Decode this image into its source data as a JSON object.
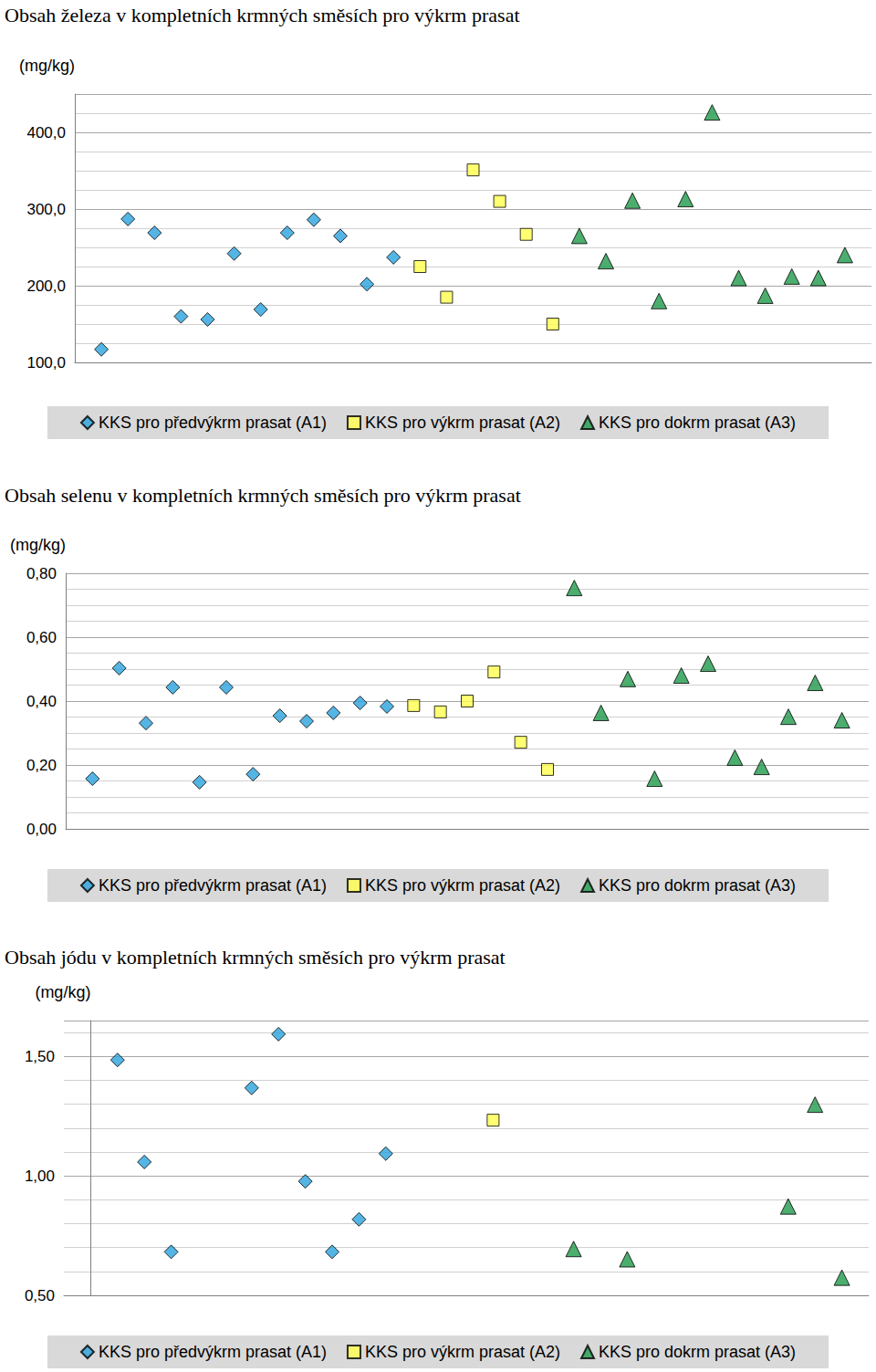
{
  "chart_data": [
    {
      "type": "scatter",
      "title": "Obsah železa v kompletních krmných směsích pro výkrm prasat",
      "ylabel": "(mg/kg)",
      "xlim": [
        0,
        30
      ],
      "ylim": [
        100,
        450
      ],
      "yticks": [
        {
          "value": 100,
          "label": "100,0"
        },
        {
          "value": 200,
          "label": "200,0"
        },
        {
          "value": 300,
          "label": "300,0"
        },
        {
          "value": 400,
          "label": "400,0"
        }
      ],
      "tick_labels": "y",
      "grid": true,
      "legend": "bottom",
      "series": [
        {
          "name": "KKS pro předvýkrm prasat (A1)",
          "color": "#29a3dd",
          "marker": "diamond",
          "x": [
            1,
            2,
            3,
            4,
            5,
            6,
            7,
            8,
            9,
            10,
            11,
            12
          ],
          "values": [
            117,
            287,
            269,
            160,
            156,
            242,
            169,
            269,
            286,
            265,
            202,
            237
          ]
        },
        {
          "name": "KKS pro výkrm prasat (A2)",
          "color": "#ffff4d",
          "marker": "square",
          "x": [
            13,
            14,
            15,
            16,
            17,
            18
          ],
          "values": [
            225,
            185,
            351,
            310,
            267,
            150
          ]
        },
        {
          "name": "KKS pro dokrm prasat (A3)",
          "color": "#1f9a4a",
          "marker": "triangle",
          "x": [
            19,
            20,
            21,
            22,
            23,
            24,
            25,
            26,
            27,
            28,
            29
          ],
          "values": [
            265,
            232,
            311,
            180,
            313,
            426,
            210,
            187,
            212,
            210,
            240
          ]
        }
      ]
    },
    {
      "type": "scatter",
      "title": "Obsah selenu v kompletních krmných směsích pro výkrm prasat",
      "ylabel": "(mg/kg)",
      "xlim": [
        0,
        30
      ],
      "ylim": [
        0,
        0.8
      ],
      "yticks": [
        {
          "value": 0,
          "label": "0,00"
        },
        {
          "value": 0.2,
          "label": "0,20"
        },
        {
          "value": 0.4,
          "label": "0,40"
        },
        {
          "value": 0.6,
          "label": "0,60"
        },
        {
          "value": 0.8,
          "label": "0,80"
        }
      ],
      "tick_labels": "y",
      "grid": true,
      "legend": "bottom",
      "series": [
        {
          "name": "KKS pro předvýkrm prasat (A1)",
          "color": "#29a3dd",
          "marker": "diamond",
          "x": [
            1,
            2,
            3,
            4,
            5,
            6,
            7,
            8,
            9,
            10,
            11,
            12
          ],
          "values": [
            0.157,
            0.503,
            0.331,
            0.443,
            0.146,
            0.443,
            0.171,
            0.354,
            0.337,
            0.363,
            0.394,
            0.383
          ]
        },
        {
          "name": "KKS pro výkrm prasat (A2)",
          "color": "#ffff4d",
          "marker": "square",
          "x": [
            13,
            14,
            15,
            16,
            17,
            18
          ],
          "values": [
            0.386,
            0.366,
            0.4,
            0.491,
            0.271,
            0.186
          ]
        },
        {
          "name": "KKS pro dokrm prasat (A3)",
          "color": "#1f9a4a",
          "marker": "triangle",
          "x": [
            19,
            20,
            21,
            22,
            23,
            24,
            25,
            26,
            27,
            28,
            29
          ],
          "values": [
            0.754,
            0.363,
            0.469,
            0.157,
            0.48,
            0.517,
            0.223,
            0.194,
            0.351,
            0.457,
            0.34
          ]
        }
      ]
    },
    {
      "type": "scatter",
      "title": "Obsah jódu v kompletních krmných směsích pro výkrm prasat",
      "ylabel": "(mg/kg)",
      "xlim": [
        -1,
        29
      ],
      "ylim": [
        0.5,
        1.65
      ],
      "yticks": [
        {
          "value": 0.5,
          "label": "0,50"
        },
        {
          "value": 1.0,
          "label": "1,00"
        },
        {
          "value": 1.5,
          "label": "1,50"
        }
      ],
      "tick_labels": "y",
      "grid": true,
      "legend": "bottom",
      "series": [
        {
          "name": "KKS pro předvýkrm prasat (A1)",
          "color": "#29a3dd",
          "marker": "diamond",
          "x": [
            1,
            2,
            3,
            6,
            7,
            8,
            9,
            10,
            11
          ],
          "values": [
            1.485,
            1.058,
            0.682,
            1.368,
            1.593,
            0.977,
            0.682,
            0.818,
            1.093
          ]
        },
        {
          "name": "KKS pro výkrm prasat (A2)",
          "color": "#ffff4d",
          "marker": "square",
          "x": [
            15
          ],
          "values": [
            1.233
          ]
        },
        {
          "name": "KKS pro dokrm prasat (A3)",
          "color": "#1f9a4a",
          "marker": "triangle",
          "x": [
            18,
            20,
            26,
            27,
            28
          ],
          "values": [
            0.694,
            0.651,
            0.872,
            1.298,
            0.574
          ]
        }
      ]
    }
  ]
}
